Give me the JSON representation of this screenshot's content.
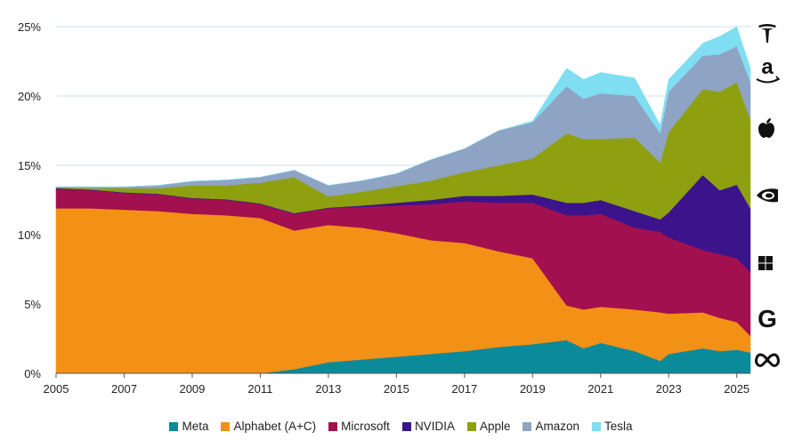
{
  "chart_data": {
    "type": "area",
    "stacked": true,
    "title": "",
    "xlabel": "",
    "ylabel": "",
    "x": [
      2005,
      2006,
      2007,
      2008,
      2009,
      2010,
      2011,
      2012,
      2013,
      2014,
      2015,
      2016,
      2017,
      2018,
      2019,
      2020,
      2020.5,
      2021,
      2022,
      2022.75,
      2023,
      2024,
      2024.5,
      2025,
      2025.4
    ],
    "series": [
      {
        "name": "Meta",
        "color": "#0b8a9a",
        "values": [
          0,
          0,
          0,
          0,
          0,
          0,
          0,
          0.3,
          0.8,
          1.0,
          1.2,
          1.4,
          1.6,
          1.9,
          2.1,
          2.4,
          1.8,
          2.2,
          1.6,
          0.9,
          1.4,
          1.8,
          1.6,
          1.7,
          1.5
        ]
      },
      {
        "name": "Alphabet (A+C)",
        "color": "#f39016",
        "values": [
          11.9,
          11.9,
          11.8,
          11.7,
          11.5,
          11.4,
          11.2,
          10.0,
          9.9,
          9.5,
          8.9,
          8.2,
          7.8,
          6.9,
          6.2,
          2.5,
          2.8,
          2.6,
          3.0,
          3.5,
          2.9,
          2.6,
          2.4,
          2.0,
          1.2
        ]
      },
      {
        "name": "Microsoft",
        "color": "#a3104f",
        "values": [
          1.4,
          1.3,
          1.2,
          1.2,
          1.1,
          1.1,
          1.0,
          1.2,
          1.2,
          1.5,
          2.0,
          2.6,
          3.0,
          3.5,
          4.0,
          6.5,
          6.8,
          6.7,
          5.9,
          5.8,
          5.5,
          4.5,
          4.6,
          4.6,
          4.6
        ]
      },
      {
        "name": "NVIDIA",
        "color": "#3b148c",
        "values": [
          0.05,
          0.05,
          0.05,
          0.05,
          0.05,
          0.05,
          0.05,
          0.05,
          0.05,
          0.1,
          0.2,
          0.3,
          0.4,
          0.5,
          0.6,
          0.9,
          0.9,
          1.0,
          1.2,
          0.9,
          1.8,
          5.4,
          4.6,
          5.3,
          4.6
        ]
      },
      {
        "name": "Apple",
        "color": "#8ea00f",
        "values": [
          0.05,
          0.1,
          0.3,
          0.4,
          0.9,
          1.0,
          1.5,
          2.6,
          0.8,
          1.0,
          1.2,
          1.4,
          1.7,
          2.2,
          2.6,
          5.0,
          4.6,
          4.4,
          5.3,
          4.1,
          5.8,
          6.2,
          7.1,
          7.4,
          6.4
        ]
      },
      {
        "name": "Amazon",
        "color": "#8fa3c4",
        "values": [
          0.05,
          0.1,
          0.1,
          0.2,
          0.3,
          0.4,
          0.4,
          0.5,
          0.8,
          0.8,
          0.9,
          1.5,
          1.7,
          2.5,
          2.6,
          3.4,
          2.9,
          3.3,
          3.0,
          2.1,
          2.9,
          2.4,
          2.7,
          2.6,
          2.7
        ]
      },
      {
        "name": "Tesla",
        "color": "#7fdef1",
        "values": [
          0,
          0,
          0,
          0,
          0,
          0,
          0,
          0,
          0,
          0,
          0,
          0,
          0,
          0,
          0.1,
          1.3,
          1.4,
          1.5,
          1.3,
          0.6,
          0.9,
          0.9,
          1.3,
          1.4,
          1.0
        ]
      }
    ],
    "xlim": [
      2005,
      2025.4
    ],
    "ylim": [
      0,
      25
    ],
    "x_ticks": [
      "2005",
      "2007",
      "2009",
      "2011",
      "2013",
      "2015",
      "2017",
      "2019",
      "2021",
      "2023",
      "2025"
    ],
    "y_ticks": [
      "0%",
      "5%",
      "10%",
      "15%",
      "20%",
      "25%"
    ],
    "grid": "horizontal",
    "legend_position": "bottom",
    "legend": [
      "Meta",
      "Alphabet (A+C)",
      "Microsoft",
      "NVIDIA",
      "Apple",
      "Amazon",
      "Tesla"
    ],
    "logos_right": [
      "tesla-logo",
      "amazon-logo",
      "apple-logo",
      "nvidia-logo",
      "microsoft-logo",
      "google-logo",
      "meta-logo"
    ]
  }
}
